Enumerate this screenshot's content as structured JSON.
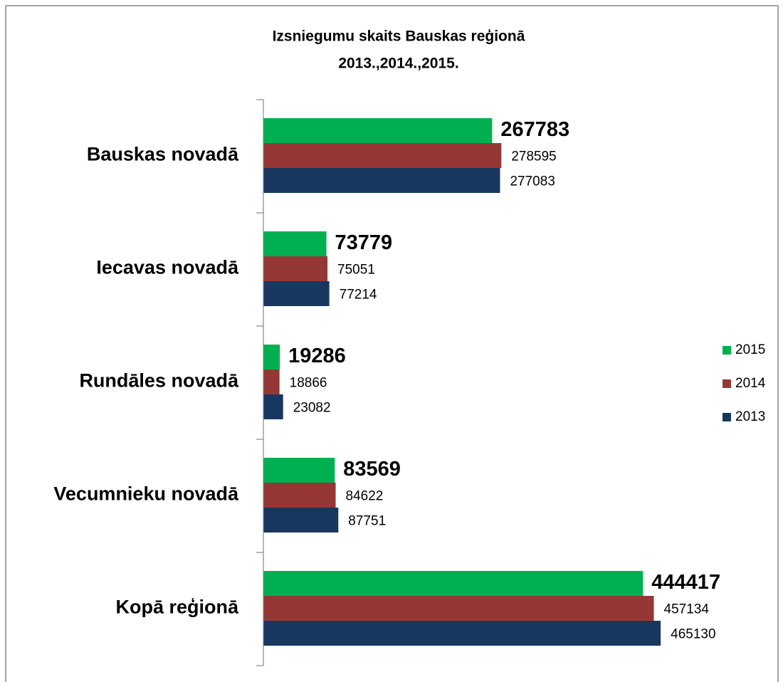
{
  "chart_data": {
    "type": "bar",
    "orientation": "horizontal",
    "title": [
      "Izsniegumu skaits Bauskas reģionā",
      "2013.,2014.,2015."
    ],
    "categories": [
      "Bauskas novadā",
      "Iecavas novadā",
      "Rundāles novadā",
      "Vecumnieku novadā",
      "Kopā reģionā"
    ],
    "series": [
      {
        "name": "2015",
        "color": "#00b050",
        "values": [
          267783,
          73779,
          19286,
          83569,
          444417
        ]
      },
      {
        "name": "2014",
        "color": "#953735",
        "values": [
          278595,
          75051,
          18866,
          84622,
          457134
        ]
      },
      {
        "name": "2013",
        "color": "#17375e",
        "values": [
          277083,
          77214,
          23082,
          87751,
          465130
        ]
      }
    ],
    "xlim": [
      0,
      500000
    ],
    "legend": "right"
  }
}
